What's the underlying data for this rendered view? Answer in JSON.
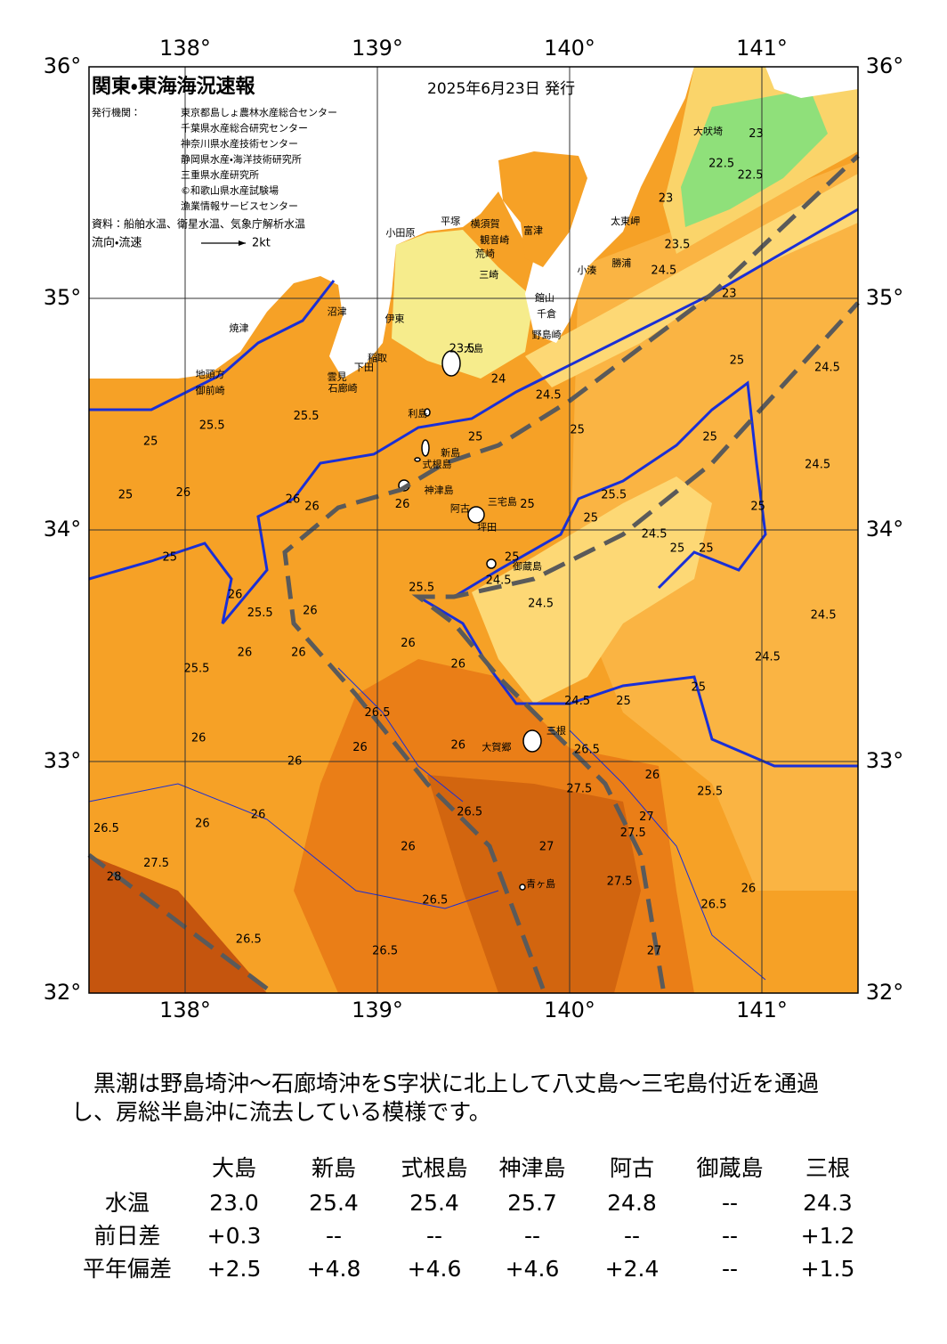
{
  "map": {
    "lonlim": [
      137.5,
      141.5
    ],
    "latlim": [
      32,
      36
    ],
    "lonticks": [
      {
        "value": 138,
        "label": "138°"
      },
      {
        "value": 139,
        "label": "139°"
      },
      {
        "value": 140,
        "label": "140°"
      },
      {
        "value": 141,
        "label": "141°"
      }
    ],
    "latticks": [
      {
        "value": 32,
        "label": "32°"
      },
      {
        "value": 33,
        "label": "33°"
      },
      {
        "value": 34,
        "label": "34°"
      },
      {
        "value": 35,
        "label": "35°"
      },
      {
        "value": 36,
        "label": "36°"
      }
    ]
  },
  "header": {
    "title": "関東・東海海況速報",
    "date": "2025年6月23日 発行",
    "issuer_label": "発行機関：",
    "issuers": [
      "東京都島しょ農林水産総合センター",
      "千葉県水産総合研究センター",
      "神奈川県水産技術センター",
      "静岡県水産・海洋技術研究所",
      "三重県水産研究所",
      "©和歌山県水産試験場",
      "漁業情報サービスセンター"
    ],
    "source": "資料：船舶水温、衛星水温、気象庁解析水温",
    "legend_label": "流向・流速",
    "legend_scale": "2kt"
  },
  "place_names": [
    {
      "text": "大吠埼",
      "lon": 140.72,
      "lat": 35.72
    },
    {
      "text": "太東岬",
      "lon": 140.29,
      "lat": 35.33
    },
    {
      "text": "勝浦",
      "lon": 140.27,
      "lat": 35.15
    },
    {
      "text": "小湊",
      "lon": 140.09,
      "lat": 35.12
    },
    {
      "text": "館山",
      "lon": 139.87,
      "lat": 35.0
    },
    {
      "text": "千倉",
      "lon": 139.88,
      "lat": 34.93
    },
    {
      "text": "野島崎",
      "lon": 139.88,
      "lat": 34.84
    },
    {
      "text": "富津",
      "lon": 139.81,
      "lat": 35.29
    },
    {
      "text": "横須賀",
      "lon": 139.56,
      "lat": 35.32
    },
    {
      "text": "観音崎",
      "lon": 139.61,
      "lat": 35.25
    },
    {
      "text": "荒崎",
      "lon": 139.56,
      "lat": 35.19
    },
    {
      "text": "三崎",
      "lon": 139.58,
      "lat": 35.1
    },
    {
      "text": "平塚",
      "lon": 139.38,
      "lat": 35.33
    },
    {
      "text": "小田原",
      "lon": 139.12,
      "lat": 35.28
    },
    {
      "text": "伊東",
      "lon": 139.09,
      "lat": 34.91
    },
    {
      "text": "沼津",
      "lon": 138.79,
      "lat": 34.94
    },
    {
      "text": "稲取",
      "lon": 139.0,
      "lat": 34.74
    },
    {
      "text": "下田",
      "lon": 138.93,
      "lat": 34.7
    },
    {
      "text": "雲見",
      "lon": 138.79,
      "lat": 34.66
    },
    {
      "text": "石廊崎",
      "lon": 138.82,
      "lat": 34.61
    },
    {
      "text": "焼津",
      "lon": 138.28,
      "lat": 34.87
    },
    {
      "text": "地頭方",
      "lon": 138.13,
      "lat": 34.67
    },
    {
      "text": "御前崎",
      "lon": 138.13,
      "lat": 34.6
    },
    {
      "text": "大島",
      "lon": 139.5,
      "lat": 34.78
    },
    {
      "text": "利島",
      "lon": 139.21,
      "lat": 34.5
    },
    {
      "text": "新島",
      "lon": 139.38,
      "lat": 34.33
    },
    {
      "text": "式根島",
      "lon": 139.31,
      "lat": 34.28
    },
    {
      "text": "神津島",
      "lon": 139.32,
      "lat": 34.17
    },
    {
      "text": "三宅島",
      "lon": 139.65,
      "lat": 34.12
    },
    {
      "text": "阿古",
      "lon": 139.43,
      "lat": 34.09
    },
    {
      "text": "坪田",
      "lon": 139.57,
      "lat": 34.01
    },
    {
      "text": "御蔵島",
      "lon": 139.78,
      "lat": 33.84
    },
    {
      "text": "三根",
      "lon": 139.93,
      "lat": 33.13
    },
    {
      "text": "大賀郷",
      "lon": 139.62,
      "lat": 33.06
    },
    {
      "text": "青ヶ島",
      "lon": 139.85,
      "lat": 32.47
    }
  ],
  "contour_labels": [
    {
      "value": 23,
      "lon": 140.97,
      "lat": 35.71
    },
    {
      "value": 22.5,
      "lon": 140.79,
      "lat": 35.58
    },
    {
      "value": 22.5,
      "lon": 140.94,
      "lat": 35.53
    },
    {
      "value": 23,
      "lon": 140.5,
      "lat": 35.43
    },
    {
      "value": 23.5,
      "lon": 140.56,
      "lat": 35.23
    },
    {
      "value": 24.5,
      "lon": 140.49,
      "lat": 35.12
    },
    {
      "value": 23,
      "lon": 140.83,
      "lat": 35.02
    },
    {
      "value": 23.5,
      "lon": 139.44,
      "lat": 34.78
    },
    {
      "value": 24,
      "lon": 139.63,
      "lat": 34.65
    },
    {
      "value": 24.5,
      "lon": 139.89,
      "lat": 34.58
    },
    {
      "value": 25,
      "lon": 139.51,
      "lat": 34.4
    },
    {
      "value": 25,
      "lon": 140.04,
      "lat": 34.43
    },
    {
      "value": 25,
      "lon": 140.87,
      "lat": 34.73
    },
    {
      "value": 25,
      "lon": 140.73,
      "lat": 34.4
    },
    {
      "value": 24.5,
      "lon": 141.34,
      "lat": 34.7
    },
    {
      "value": 24.5,
      "lon": 141.29,
      "lat": 34.28
    },
    {
      "value": 25.5,
      "lon": 140.23,
      "lat": 34.15
    },
    {
      "value": 25,
      "lon": 140.11,
      "lat": 34.05
    },
    {
      "value": 24.5,
      "lon": 140.44,
      "lat": 33.98
    },
    {
      "value": 25,
      "lon": 140.56,
      "lat": 33.92
    },
    {
      "value": 25,
      "lon": 140.71,
      "lat": 33.92
    },
    {
      "value": 25,
      "lon": 140.98,
      "lat": 34.1
    },
    {
      "value": 26,
      "lon": 139.13,
      "lat": 34.11
    },
    {
      "value": 25,
      "lon": 139.78,
      "lat": 34.11
    },
    {
      "value": 25,
      "lon": 139.7,
      "lat": 33.88
    },
    {
      "value": 24.5,
      "lon": 139.63,
      "lat": 33.78
    },
    {
      "value": 24.5,
      "lon": 139.85,
      "lat": 33.68
    },
    {
      "value": 25.5,
      "lon": 139.23,
      "lat": 33.75
    },
    {
      "value": 24.5,
      "lon": 141.32,
      "lat": 33.63
    },
    {
      "value": 24.5,
      "lon": 141.03,
      "lat": 33.45
    },
    {
      "value": 25,
      "lon": 140.28,
      "lat": 33.26
    },
    {
      "value": 25,
      "lon": 140.67,
      "lat": 33.32
    },
    {
      "value": 24.5,
      "lon": 140.04,
      "lat": 33.26
    },
    {
      "value": 25.5,
      "lon": 138.14,
      "lat": 34.45
    },
    {
      "value": 25.5,
      "lon": 138.63,
      "lat": 34.49
    },
    {
      "value": 25,
      "lon": 137.82,
      "lat": 34.38
    },
    {
      "value": 25,
      "lon": 137.69,
      "lat": 34.15
    },
    {
      "value": 25,
      "lon": 137.92,
      "lat": 33.88
    },
    {
      "value": 26,
      "lon": 137.99,
      "lat": 34.16
    },
    {
      "value": 26,
      "lon": 138.66,
      "lat": 34.1
    },
    {
      "value": 26,
      "lon": 138.56,
      "lat": 34.13
    },
    {
      "value": 26,
      "lon": 138.26,
      "lat": 33.72
    },
    {
      "value": 25.5,
      "lon": 138.39,
      "lat": 33.64
    },
    {
      "value": 26,
      "lon": 138.65,
      "lat": 33.65
    },
    {
      "value": 26,
      "lon": 138.31,
      "lat": 33.47
    },
    {
      "value": 25.5,
      "lon": 138.06,
      "lat": 33.4
    },
    {
      "value": 26,
      "lon": 138.59,
      "lat": 33.47
    },
    {
      "value": 26,
      "lon": 139.16,
      "lat": 33.51
    },
    {
      "value": 26,
      "lon": 139.42,
      "lat": 33.42
    },
    {
      "value": 26.5,
      "lon": 139.0,
      "lat": 33.21
    },
    {
      "value": 26,
      "lon": 138.91,
      "lat": 33.06
    },
    {
      "value": 26,
      "lon": 138.07,
      "lat": 33.1
    },
    {
      "value": 26,
      "lon": 138.57,
      "lat": 33.0
    },
    {
      "value": 26,
      "lon": 139.42,
      "lat": 33.07
    },
    {
      "value": 26.5,
      "lon": 140.09,
      "lat": 33.05
    },
    {
      "value": 26,
      "lon": 140.43,
      "lat": 32.94
    },
    {
      "value": 25.5,
      "lon": 140.73,
      "lat": 32.87
    },
    {
      "value": 27.5,
      "lon": 140.05,
      "lat": 32.88
    },
    {
      "value": 26.5,
      "lon": 139.48,
      "lat": 32.78
    },
    {
      "value": 27,
      "lon": 140.4,
      "lat": 32.76
    },
    {
      "value": 27.5,
      "lon": 140.33,
      "lat": 32.69
    },
    {
      "value": 27,
      "lon": 139.88,
      "lat": 32.63
    },
    {
      "value": 26,
      "lon": 139.16,
      "lat": 32.63
    },
    {
      "value": 26,
      "lon": 138.38,
      "lat": 32.77
    },
    {
      "value": 26,
      "lon": 138.09,
      "lat": 32.73
    },
    {
      "value": 26.5,
      "lon": 137.59,
      "lat": 32.71
    },
    {
      "value": 27.5,
      "lon": 137.85,
      "lat": 32.56
    },
    {
      "value": 28,
      "lon": 137.63,
      "lat": 32.5
    },
    {
      "value": 27.5,
      "lon": 140.26,
      "lat": 32.48
    },
    {
      "value": 26.5,
      "lon": 139.3,
      "lat": 32.4
    },
    {
      "value": 26.5,
      "lon": 140.75,
      "lat": 32.38
    },
    {
      "value": 26,
      "lon": 140.93,
      "lat": 32.45
    },
    {
      "value": 26.5,
      "lon": 138.33,
      "lat": 32.23
    },
    {
      "value": 26.5,
      "lon": 139.04,
      "lat": 32.18
    },
    {
      "value": 27,
      "lon": 140.44,
      "lat": 32.18
    }
  ],
  "summary": [
    "　黒潮は野島埼沖～石廊埼沖をS字状に北上して八丈島～三宅島付近を通過",
    "し、房総半島沖に流去している模様です。"
  ],
  "table": {
    "columns": [
      "大島",
      "新島",
      "式根島",
      "神津島",
      "阿古",
      "御蔵島",
      "三根"
    ],
    "rows": [
      {
        "label": "水温",
        "cells": [
          "23.0",
          "25.4",
          "25.4",
          "25.7",
          "24.8",
          "--",
          "24.3"
        ]
      },
      {
        "label": "前日差",
        "cells": [
          "+0.3",
          "--",
          "--",
          "--",
          "--",
          "--",
          "+1.2"
        ]
      },
      {
        "label": "平年偏差",
        "cells": [
          "+2.5",
          "+4.8",
          "+4.6",
          "+4.6",
          "+2.4",
          "--",
          "+1.5"
        ]
      }
    ]
  }
}
